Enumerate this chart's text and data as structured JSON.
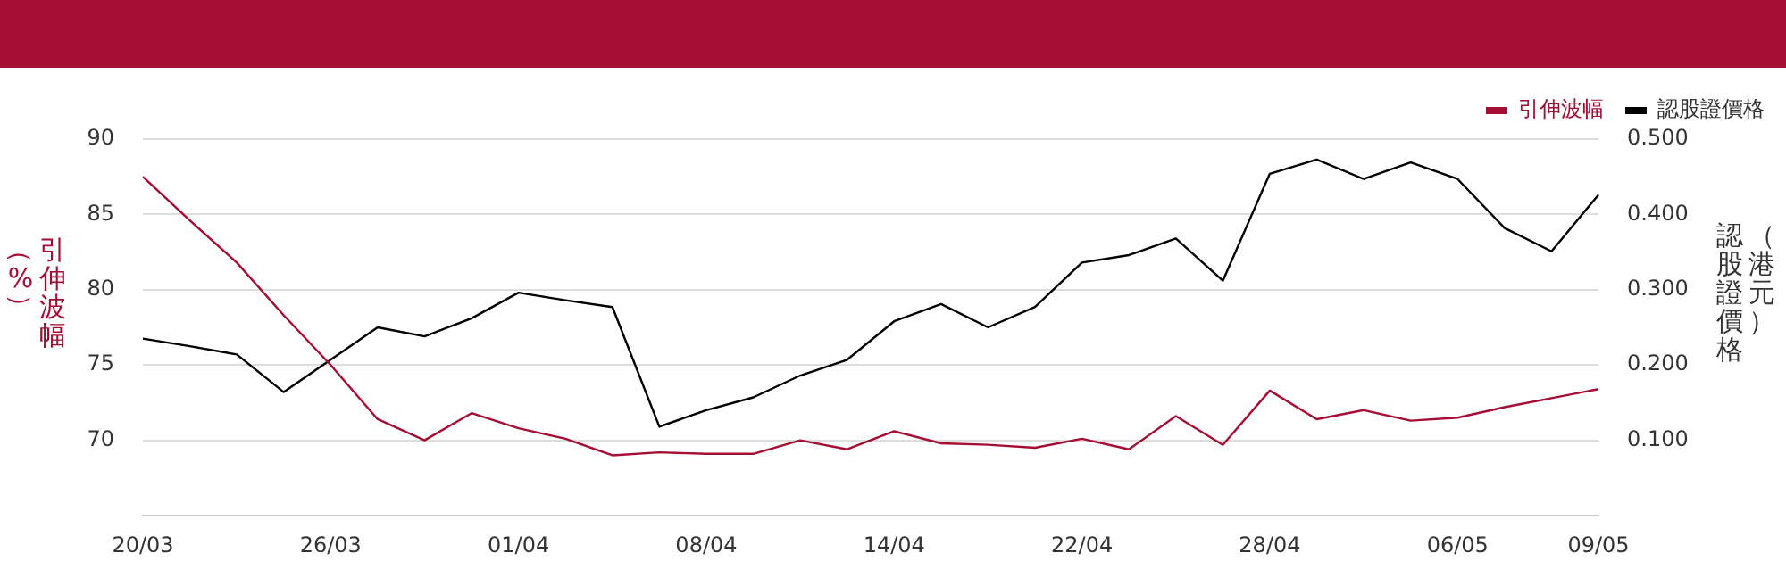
{
  "chart_data": {
    "type": "line",
    "categories": [
      "20/03",
      null,
      null,
      null,
      "26/03",
      null,
      null,
      null,
      "01/04",
      null,
      null,
      null,
      "08/04",
      null,
      null,
      null,
      "14/04",
      null,
      null,
      null,
      "22/04",
      null,
      null,
      null,
      "28/04",
      null,
      null,
      null,
      "06/05",
      null,
      null,
      "09/05"
    ],
    "series": [
      {
        "name": "引伸波幅",
        "color": "#a50d32",
        "values": [
          87.5,
          84.6,
          81.8,
          78.3,
          75.0,
          71.4,
          70.0,
          71.8,
          70.8,
          70.1,
          69.0,
          69.2,
          69.1,
          69.1,
          70.0,
          69.4,
          70.6,
          69.8,
          69.7,
          69.5,
          70.1,
          69.4,
          71.6,
          69.7,
          73.3,
          71.4,
          72.0,
          71.3,
          71.5,
          72.2,
          72.8,
          73.4
        ]
      },
      {
        "name": "認股證價格",
        "color": "#000000",
        "axis": "y2",
        "values": [
          0.235,
          0.225,
          0.214,
          0.164,
          0.207,
          0.25,
          0.238,
          0.262,
          0.296,
          0.286,
          0.277,
          0.118,
          0.14,
          0.157,
          0.186,
          0.207,
          0.258,
          0.281,
          0.25,
          0.277,
          0.336,
          0.346,
          0.368,
          0.312,
          0.454,
          0.473,
          0.447,
          0.469,
          0.447,
          0.382,
          0.351,
          0.426
        ]
      }
    ],
    "ylabel": "引伸波幅（%）",
    "y2label": "認股證價格（港元）",
    "ylim": [
      65,
      90
    ],
    "yticks": [
      70,
      75,
      80,
      85,
      90
    ],
    "y2lim": [
      0,
      0.5
    ],
    "y2ticks": [
      {
        "value": 0.1,
        "label": "0.100"
      },
      {
        "value": 0.2,
        "label": "0.200"
      },
      {
        "value": 0.3,
        "label": "0.300"
      },
      {
        "value": 0.4,
        "label": "0.400"
      },
      {
        "value": 0.5,
        "label": "0.500"
      }
    ],
    "grid": "y",
    "legend": "top right",
    "marker": "none",
    "line_style": "solid"
  }
}
